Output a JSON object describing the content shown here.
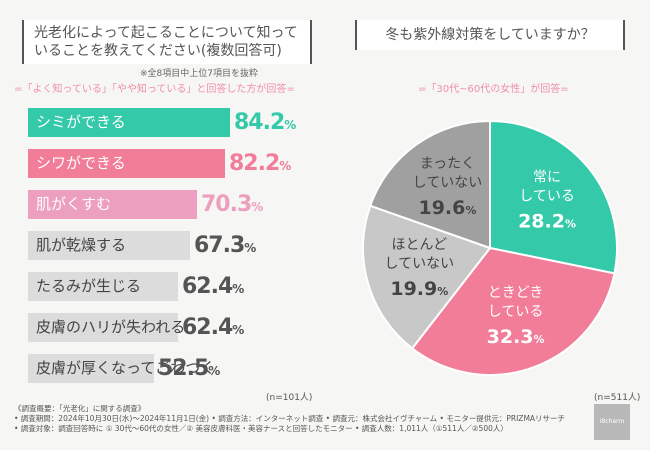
{
  "left_question": {
    "line1": "光老化によって起こることについて知って",
    "line2": "いることを教えてください(複数回答可)"
  },
  "right_question": "冬も紫外線対策をしていますか？",
  "left_note": "※全8項目中上位7項目を抜粋",
  "left_subtitle": "=「よく知っている」「やや知っている」と回答した方が回答=",
  "right_subtitle": "=「30代~60代の女性」が回答=",
  "left_n": "(n=101人)",
  "right_n": "(n=511人)",
  "unit": "%",
  "colors": {
    "teal": "#34c9a9",
    "pink": "#f27d98",
    "light_pink": "#ec9fbe",
    "gray": "#dcdcdc",
    "dark_gray": "#a0a0a0",
    "mid_gray": "#c8c8c8"
  },
  "chart_data": [
    {
      "type": "bar",
      "orientation": "horizontal",
      "categories": [
        "シミができる",
        "シワができる",
        "肌がくすむ",
        "肌が乾燥する",
        "たるみが生じる",
        "皮膚のハリが失われる",
        "皮膚が厚くなってごわつく"
      ],
      "values": [
        84.2,
        82.2,
        70.3,
        67.3,
        62.4,
        62.4,
        52.5
      ],
      "value_labels": [
        "84.2",
        "82.2",
        "70.3",
        "67.3",
        "62.4",
        "62.4",
        "52.5"
      ],
      "xlim": [
        0,
        100
      ]
    },
    {
      "type": "pie",
      "labels": [
        {
          "line1": "常に",
          "line2": "している"
        },
        {
          "line1": "ときどき",
          "line2": "している"
        },
        {
          "line1": "ほとんど",
          "line2": "していない"
        },
        {
          "line1": "まったく",
          "line2": "していない"
        }
      ],
      "values": [
        28.2,
        32.3,
        19.9,
        19.6
      ],
      "value_labels": [
        "28.2",
        "32.3",
        "19.9",
        "19.6"
      ]
    }
  ],
  "footer": {
    "line1": "《調査概要：「光老化」に関する調査》",
    "line2": "• 調査期間：2024年10月30日(水)～2024年11月1日(金) • 調査方法：インターネット調査 • 調査元：株式会社イヴチャーム • モニター提供元：PRIZMAリサーチ",
    "line3": "• 調査対象：調査回答時に ① 30代～60代の女性／② 美容皮膚科医・美容ナースと回答したモニター • 調査人数：1,011人（①511人／②500人）"
  },
  "logo_text": "i8charm"
}
